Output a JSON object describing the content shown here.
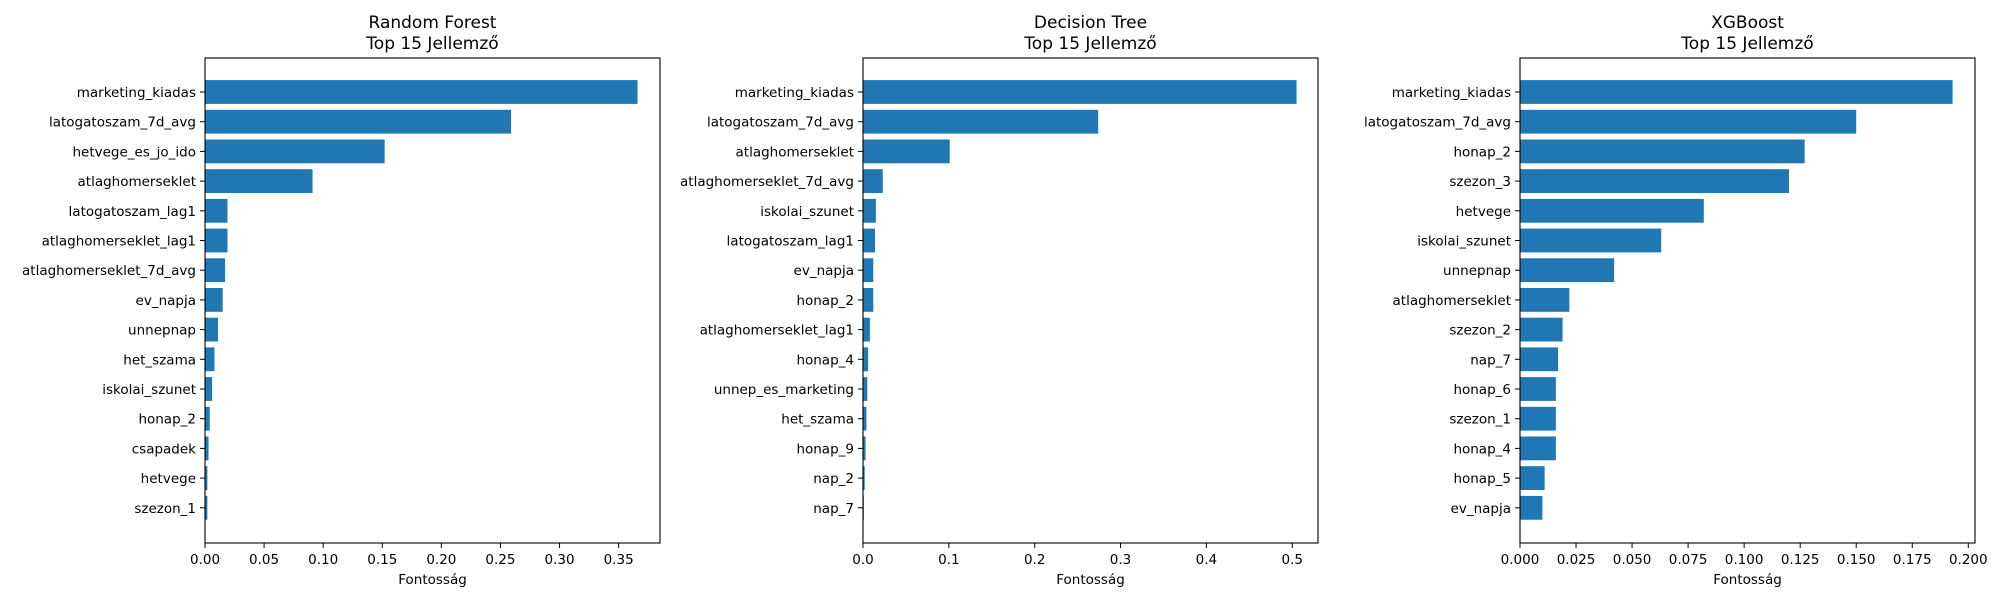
{
  "chart_data": [
    {
      "type": "bar",
      "orientation": "horizontal",
      "title": "Random Forest\nTop 15 Jellemző",
      "xlabel": "Fontosság",
      "ylabel": "",
      "xlim": [
        0,
        0.385
      ],
      "xticks": [
        0,
        0.05,
        0.1,
        0.15,
        0.2,
        0.25,
        0.3,
        0.35
      ],
      "xtick_labels": [
        "0.00",
        "0.05",
        "0.10",
        "0.15",
        "0.20",
        "0.25",
        "0.30",
        "0.35"
      ],
      "bar_color": "#1f77b4",
      "categories": [
        "marketing_kiadas",
        "latogatoszam_7d_avg",
        "hetvege_es_jo_ido",
        "atlaghomerseklet",
        "latogatoszam_lag1",
        "atlaghomerseklet_lag1",
        "atlaghomerseklet_7d_avg",
        "ev_napja",
        "unnepnap",
        "het_szama",
        "iskolai_szunet",
        "honap_2",
        "csapadek",
        "hetvege",
        "szezon_1"
      ],
      "values": [
        0.366,
        0.259,
        0.152,
        0.091,
        0.019,
        0.019,
        0.017,
        0.015,
        0.011,
        0.008,
        0.006,
        0.004,
        0.003,
        0.002,
        0.002
      ]
    },
    {
      "type": "bar",
      "orientation": "horizontal",
      "title": "Decision Tree\nTop 15 Jellemző",
      "xlabel": "Fontosság",
      "ylabel": "",
      "xlim": [
        0,
        0.53
      ],
      "xticks": [
        0,
        0.1,
        0.2,
        0.3,
        0.4,
        0.5
      ],
      "xtick_labels": [
        "0.0",
        "0.1",
        "0.2",
        "0.3",
        "0.4",
        "0.5"
      ],
      "bar_color": "#1f77b4",
      "categories": [
        "marketing_kiadas",
        "latogatoszam_7d_avg",
        "atlaghomerseklet",
        "atlaghomerseklet_7d_avg",
        "iskolai_szunet",
        "latogatoszam_lag1",
        "ev_napja",
        "honap_2",
        "atlaghomerseklet_lag1",
        "honap_4",
        "unnep_es_marketing",
        "het_szama",
        "honap_9",
        "nap_2",
        "nap_7"
      ],
      "values": [
        0.505,
        0.274,
        0.101,
        0.023,
        0.015,
        0.014,
        0.012,
        0.012,
        0.008,
        0.006,
        0.005,
        0.004,
        0.003,
        0.002,
        0.0005
      ]
    },
    {
      "type": "bar",
      "orientation": "horizontal",
      "title": "XGBoost\nTop 15 Jellemző",
      "xlabel": "Fontosság",
      "ylabel": "",
      "xlim": [
        0,
        0.203
      ],
      "xticks": [
        0,
        0.025,
        0.05,
        0.075,
        0.1,
        0.125,
        0.15,
        0.175,
        0.2
      ],
      "xtick_labels": [
        "0.000",
        "0.025",
        "0.050",
        "0.075",
        "0.100",
        "0.125",
        "0.150",
        "0.175",
        "0.200"
      ],
      "bar_color": "#1f77b4",
      "categories": [
        "marketing_kiadas",
        "latogatoszam_7d_avg",
        "honap_2",
        "szezon_3",
        "hetvege",
        "iskolai_szunet",
        "unnepnap",
        "atlaghomerseklet",
        "szezon_2",
        "nap_7",
        "honap_6",
        "szezon_1",
        "honap_4",
        "honap_5",
        "ev_napja"
      ],
      "values": [
        0.193,
        0.15,
        0.127,
        0.12,
        0.082,
        0.063,
        0.042,
        0.022,
        0.019,
        0.017,
        0.016,
        0.016,
        0.016,
        0.011,
        0.01
      ]
    }
  ]
}
